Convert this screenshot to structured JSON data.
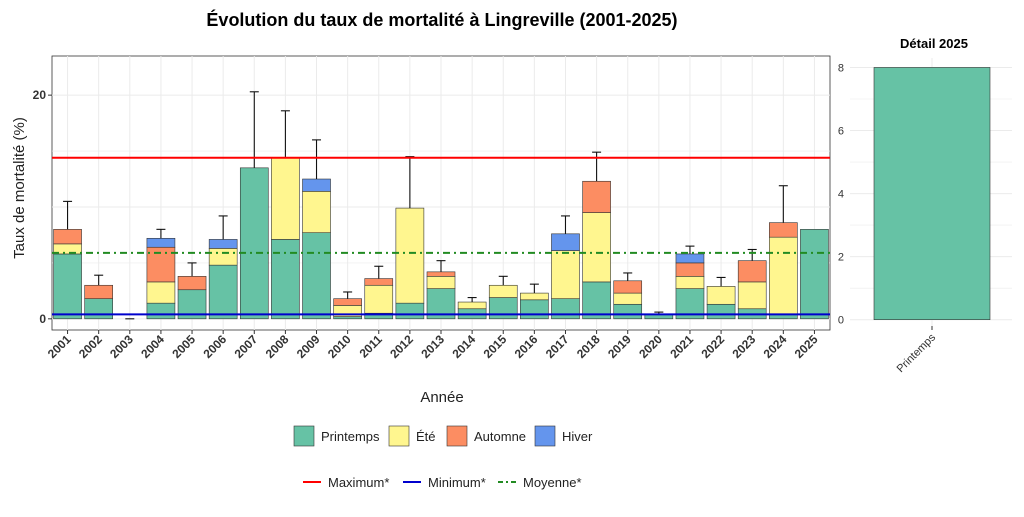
{
  "colors": {
    "Printemps": "#66C2A5",
    "Été": "#FFF68F",
    "Automne": "#FC8D62",
    "Hiver": "#6495ED",
    "maximum": "#FF0000",
    "minimum": "#0000CD",
    "moyenne": "#228B22"
  },
  "chart_data": [
    {
      "type": "bar",
      "stacked": true,
      "title": "Évolution du taux de mortalité à Lingreville (2001-2025)",
      "xlabel": "Année",
      "ylabel": "Taux de mortalité (%)",
      "ylim": [
        -1,
        23.5
      ],
      "yticks": [
        0,
        20
      ],
      "grid": true,
      "legend_position": "bottom",
      "categories": [
        "2001",
        "2002",
        "2003",
        "2004",
        "2005",
        "2006",
        "2007",
        "2008",
        "2009",
        "2010",
        "2011",
        "2012",
        "2013",
        "2014",
        "2015",
        "2016",
        "2017",
        "2018",
        "2019",
        "2020",
        "2021",
        "2022",
        "2023",
        "2024",
        "2025"
      ],
      "series": [
        {
          "name": "Printemps",
          "values": [
            5.8,
            1.8,
            0,
            1.4,
            2.6,
            4.8,
            13.5,
            7.1,
            7.7,
            0.2,
            0.5,
            1.4,
            2.7,
            0.9,
            1.9,
            1.7,
            1.8,
            3.3,
            1.3,
            0.4,
            2.7,
            1.3,
            0.9,
            0.4,
            8.0
          ]
        },
        {
          "name": "Été",
          "values": [
            0.9,
            0,
            0,
            1.9,
            0,
            1.5,
            0,
            7.3,
            3.7,
            1.0,
            2.5,
            8.5,
            1.1,
            0.6,
            1.1,
            0.6,
            4.3,
            6.2,
            1.0,
            0,
            1.1,
            1.6,
            2.4,
            6.9,
            0
          ]
        },
        {
          "name": "Automne",
          "values": [
            1.3,
            1.2,
            0,
            3.1,
            1.2,
            0,
            0,
            0,
            0,
            0.6,
            0.6,
            0,
            0.4,
            0,
            0,
            0,
            0,
            2.8,
            1.1,
            0,
            1.2,
            0,
            1.9,
            1.3,
            0
          ]
        },
        {
          "name": "Hiver",
          "values": [
            0,
            0,
            0,
            0.8,
            0,
            0.8,
            0,
            0,
            1.1,
            0,
            0,
            0,
            0,
            0,
            0,
            0,
            1.5,
            0,
            0,
            0,
            0.8,
            0,
            0,
            0,
            0
          ]
        }
      ],
      "error_bar_upper": [
        10.5,
        3.9,
        0,
        8.0,
        5.0,
        9.2,
        20.3,
        18.6,
        16.0,
        2.4,
        4.7,
        14.5,
        5.2,
        1.9,
        3.8,
        3.1,
        9.2,
        14.9,
        4.1,
        0.6,
        6.5,
        3.7,
        6.2,
        11.9,
        8.0
      ],
      "reference_lines": [
        {
          "name": "Maximum*",
          "value": 14.4,
          "style": "solid"
        },
        {
          "name": "Minimum*",
          "value": 0.4,
          "style": "solid"
        },
        {
          "name": "Moyenne*",
          "value": 5.9,
          "style": "dashdot"
        }
      ]
    },
    {
      "type": "bar",
      "title": "Détail 2025",
      "categories": [
        "Printemps"
      ],
      "values": [
        8.0
      ],
      "ylim": [
        -0.2,
        8.3
      ],
      "yticks": [
        0,
        2,
        4,
        6,
        8
      ],
      "grid": true
    }
  ]
}
